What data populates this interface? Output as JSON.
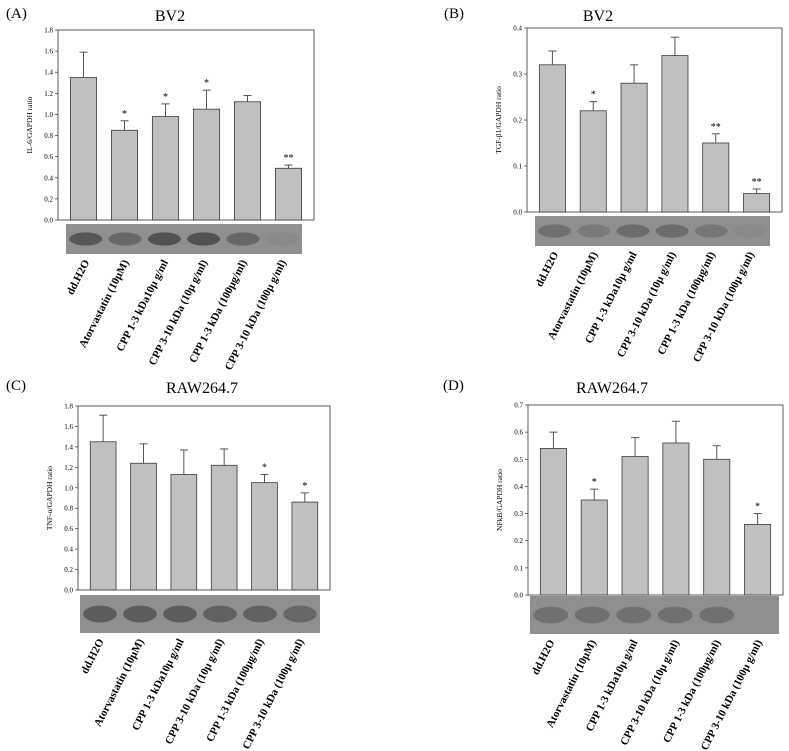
{
  "figure": {
    "categories": [
      "dd.H2O",
      "Atorvastatin (10μM)",
      "CPP 1-3 kDa10μ g/ml",
      "CPP 3-10 kDa (10μ g/ml)",
      "CPP 1-3 kDa (100μg/ml)",
      "CPP 3-10 kDa (100μ g/ml)"
    ],
    "bar_color": "#c0c0c0",
    "error_color": "#555555"
  },
  "chart_data": [
    {
      "type": "bar",
      "panel": "(A)",
      "title": "BV2",
      "ylabel": "IL-6/GAPDH ratio",
      "categories": [
        "dd.H2O",
        "Atorvastatin (10μM)",
        "CPP 1-3 kDa10μ g/ml",
        "CPP 3-10 kDa (10μ g/ml)",
        "CPP 1-3 kDa (100μg/ml)",
        "CPP 3-10 kDa (100μ g/ml)"
      ],
      "values": [
        1.35,
        0.85,
        0.98,
        1.05,
        1.12,
        0.49
      ],
      "errors": [
        0.24,
        0.09,
        0.12,
        0.18,
        0.06,
        0.03
      ],
      "significance": [
        "",
        "*",
        "*",
        "*",
        "",
        "**"
      ],
      "ylim": [
        0,
        1.8
      ],
      "yticks": [
        "0.0",
        "0.2",
        "0.4",
        "0.6",
        "0.8",
        "1.0",
        "1.2",
        "1.4",
        "1.6",
        "1.8"
      ],
      "gel": [
        0.55,
        0.38,
        0.6,
        0.6,
        0.4,
        0.05
      ]
    },
    {
      "type": "bar",
      "panel": "(B)",
      "title": "BV2",
      "ylabel": "TGF-β1/GAPDH ratio",
      "categories": [
        "dd.H2O",
        "Atorvastatin (10μM)",
        "CPP 1-3 kDa10μ g/ml",
        "CPP 3-10 kDa (10μ g/ml)",
        "CPP 1-3 kDa (100μg/ml)",
        "CPP 3-10 kDa (100μ g/ml)"
      ],
      "values": [
        0.32,
        0.22,
        0.28,
        0.34,
        0.15,
        0.04
      ],
      "errors": [
        0.03,
        0.02,
        0.04,
        0.04,
        0.02,
        0.01
      ],
      "significance": [
        "",
        "*",
        "",
        "",
        "**",
        "**"
      ],
      "ylim": [
        0,
        0.4
      ],
      "yticks": [
        "0.0",
        "0.1",
        "0.2",
        "0.3",
        "0.4"
      ],
      "gel": [
        0.3,
        0.2,
        0.35,
        0.35,
        0.25,
        0.05
      ]
    },
    {
      "type": "bar",
      "panel": "(C)",
      "title": "RAW264.7",
      "ylabel": "TNF-α/GAPDH ratio",
      "categories": [
        "dd.H2O",
        "Atorvastatin (10μM)",
        "CPP 1-3 kDa10μ g/ml",
        "CPP 3-10 kDa (10μ g/ml)",
        "CPP 1-3 kDa (100μg/ml)",
        "CPP 3-10 kDa (100μ g/ml)"
      ],
      "values": [
        1.45,
        1.24,
        1.13,
        1.22,
        1.05,
        0.86
      ],
      "errors": [
        0.26,
        0.19,
        0.24,
        0.16,
        0.08,
        0.09
      ],
      "significance": [
        "",
        "",
        "",
        "",
        "*",
        "*"
      ],
      "ylim": [
        0,
        1.8
      ],
      "yticks": [
        "0.0",
        "0.2",
        "0.4",
        "0.6",
        "0.8",
        "1.0",
        "1.2",
        "1.4",
        "1.6",
        "1.8"
      ],
      "gel": [
        0.5,
        0.5,
        0.5,
        0.45,
        0.45,
        0.4
      ]
    },
    {
      "type": "bar",
      "panel": "(D)",
      "title": "RAW264.7",
      "ylabel": "NFkB/GAPDH ratio",
      "categories": [
        "dd.H2O",
        "Atorvastatin (10μM)",
        "CPP 1-3 kDa10μ g/ml",
        "CPP 3-10 kDa (10μ g/ml)",
        "CPP 1-3 kDa (100μg/ml)",
        "CPP 3-10 kDa (100μ g/ml)"
      ],
      "values": [
        0.54,
        0.35,
        0.51,
        0.56,
        0.5,
        0.26
      ],
      "errors": [
        0.06,
        0.04,
        0.07,
        0.08,
        0.05,
        0.04
      ],
      "significance": [
        "",
        "*",
        "",
        "",
        "",
        "*"
      ],
      "ylim": [
        0,
        0.7
      ],
      "yticks": [
        "0.0",
        "0.1",
        "0.2",
        "0.3",
        "0.4",
        "0.5",
        "0.6",
        "0.7"
      ],
      "gel": [
        0.3,
        0.3,
        0.3,
        0.3,
        0.3,
        0.0
      ]
    }
  ]
}
